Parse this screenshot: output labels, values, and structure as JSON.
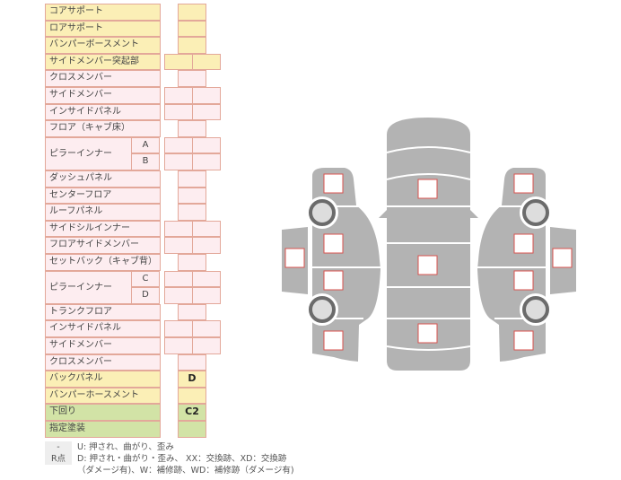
{
  "table": {
    "rows": [
      {
        "label": "コアサポート",
        "cells": "single",
        "color": "yellow",
        "values": [
          ""
        ]
      },
      {
        "label": "ロアサポート",
        "cells": "single",
        "color": "yellow",
        "values": [
          ""
        ]
      },
      {
        "label": "バンパーボースメント",
        "cells": "single",
        "color": "yellow",
        "values": [
          ""
        ]
      },
      {
        "label": "サイドメンバー突起部",
        "cells": "pair",
        "color": "yellow",
        "values": [
          "",
          ""
        ]
      },
      {
        "label": "クロスメンバー",
        "cells": "single",
        "color": "pink",
        "values": [
          ""
        ]
      },
      {
        "label": "サイドメンバー",
        "cells": "pair",
        "color": "pink",
        "values": [
          "",
          ""
        ]
      },
      {
        "label": "インサイドパネル",
        "cells": "pair",
        "color": "pink",
        "values": [
          "",
          ""
        ]
      },
      {
        "label": "フロア（キャブ床）",
        "cells": "single",
        "color": "pink",
        "values": [
          ""
        ]
      },
      {
        "label": "ピラーインナー",
        "sub": [
          "A",
          "B"
        ],
        "cells": "pair",
        "color": "pink",
        "values": [
          "",
          "",
          "",
          ""
        ]
      },
      {
        "label": "ダッシュパネル",
        "cells": "single",
        "color": "pink",
        "values": [
          ""
        ]
      },
      {
        "label": "センターフロア",
        "cells": "single",
        "color": "pink",
        "values": [
          ""
        ]
      },
      {
        "label": "ルーフパネル",
        "cells": "single",
        "color": "pink",
        "values": [
          ""
        ]
      },
      {
        "label": "サイドシルインナー",
        "cells": "pair",
        "color": "pink",
        "values": [
          "",
          ""
        ]
      },
      {
        "label": "フロアサイドメンバー",
        "cells": "pair",
        "color": "pink",
        "values": [
          "",
          ""
        ]
      },
      {
        "label": "セットバック（キャブ背）",
        "cells": "single",
        "color": "pink",
        "values": [
          ""
        ]
      },
      {
        "label": "ピラーインナー",
        "sub": [
          "C",
          "D"
        ],
        "cells": "pair",
        "color": "pink",
        "values": [
          "",
          "",
          "",
          ""
        ]
      },
      {
        "label": "トランクフロア",
        "cells": "single",
        "color": "pink",
        "values": [
          ""
        ]
      },
      {
        "label": "インサイドパネル",
        "cells": "pair",
        "color": "pink",
        "values": [
          "",
          ""
        ]
      },
      {
        "label": "サイドメンバー",
        "cells": "pair",
        "color": "pink",
        "values": [
          "",
          ""
        ]
      },
      {
        "label": "クロスメンバー",
        "cells": "single",
        "color": "pink",
        "values": [
          ""
        ]
      },
      {
        "label": "バックパネル",
        "cells": "single",
        "color": "yellow",
        "values": [
          "D"
        ]
      },
      {
        "label": "バンパーホースメント",
        "cells": "single",
        "color": "yellow",
        "values": [
          ""
        ]
      },
      {
        "label": "下回り",
        "cells": "single",
        "color": "green",
        "values": [
          "C2"
        ]
      },
      {
        "label": "指定塗装",
        "cells": "single",
        "color": "green",
        "values": [
          ""
        ]
      }
    ]
  },
  "legend": [
    {
      "key": "-",
      "text": "U: 押され、曲がり、歪み"
    },
    {
      "key": "R点",
      "text": "D: 押され・曲がり・歪み、 XX：交換跡、XD：交換跡"
    },
    {
      "key": "",
      "text": "（ダメージ有)、W：補修跡、WD：補修跡（ダメージ有)"
    }
  ],
  "colors": {
    "yellow": "#fbefb6",
    "pink": "#fdedf0",
    "green": "#d2e3a6",
    "border": "#e3a89a",
    "body": "#b3b3b3",
    "marker": "#d9534f"
  }
}
